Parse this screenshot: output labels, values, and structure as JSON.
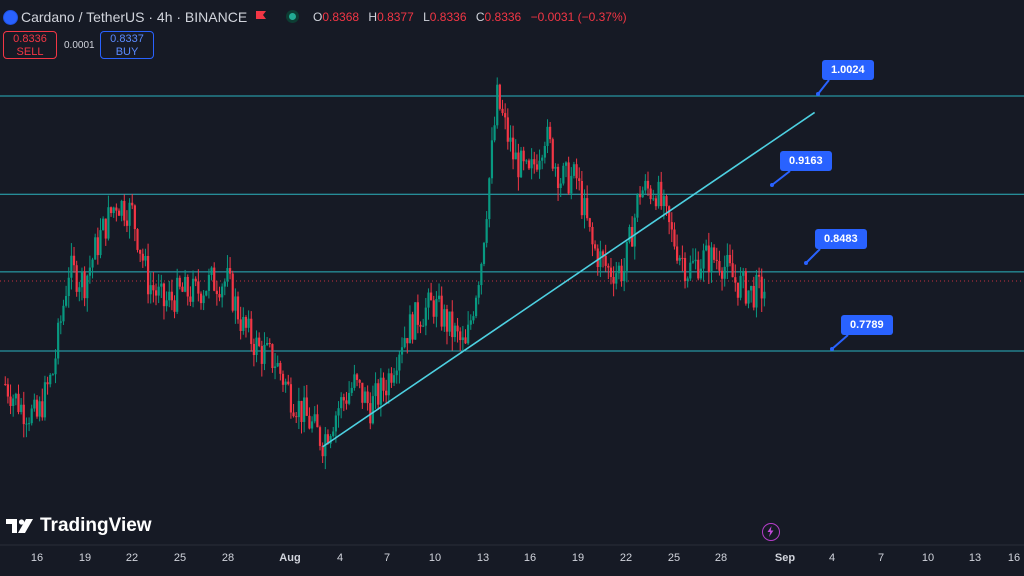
{
  "header": {
    "symbol_title": "Cardano / TetherUS · 4h · BINANCE",
    "ohlc": {
      "open_label": "O",
      "open": "0.8368",
      "high_label": "H",
      "high": "0.8377",
      "low_label": "L",
      "low": "0.8336",
      "close_label": "C",
      "close": "0.8336",
      "change": "−0.0031 (−0.37%)"
    }
  },
  "trade": {
    "sell_price": "0.8336",
    "sell_label": "SELL",
    "spread": "0.0001",
    "buy_price": "0.8337",
    "buy_label": "BUY"
  },
  "brand": "TradingView",
  "price_labels": {
    "l1": "1.0024",
    "l2": "0.9163",
    "l3": "0.8483",
    "l4": "0.7789"
  },
  "x_axis": [
    "16",
    "19",
    "22",
    "25",
    "28",
    "Aug",
    "4",
    "7",
    "10",
    "13",
    "16",
    "19",
    "22",
    "25",
    "28",
    "Sep",
    "4",
    "7",
    "10",
    "13",
    "16"
  ],
  "chart_data": {
    "type": "candlestick",
    "symbol": "Cardano / TetherUS",
    "interval": "4h",
    "exchange": "BINANCE",
    "last_price": 0.8336,
    "horizontal_levels": [
      1.0024,
      0.9163,
      0.8483,
      0.7789
    ],
    "trendline": {
      "from": {
        "date": "Aug 3",
        "price": 0.695
      },
      "to": {
        "date": "Sep 3",
        "price": 0.988
      }
    },
    "close_path": [
      {
        "date": "Jul 14",
        "price": 0.75
      },
      {
        "date": "Jul 15",
        "price": 0.73
      },
      {
        "date": "Jul 16",
        "price": 0.72
      },
      {
        "date": "Jul 17",
        "price": 0.76
      },
      {
        "date": "Jul 18",
        "price": 0.85
      },
      {
        "date": "Jul 19",
        "price": 0.84
      },
      {
        "date": "Jul 20",
        "price": 0.88
      },
      {
        "date": "Jul 21",
        "price": 0.91
      },
      {
        "date": "Jul 22",
        "price": 0.9
      },
      {
        "date": "Jul 23",
        "price": 0.84
      },
      {
        "date": "Jul 24",
        "price": 0.82
      },
      {
        "date": "Jul 25",
        "price": 0.83
      },
      {
        "date": "Jul 26",
        "price": 0.83
      },
      {
        "date": "Jul 27",
        "price": 0.84
      },
      {
        "date": "Jul 28",
        "price": 0.84
      },
      {
        "date": "Jul 29",
        "price": 0.8
      },
      {
        "date": "Jul 30",
        "price": 0.78
      },
      {
        "date": "Jul 31",
        "price": 0.77
      },
      {
        "date": "Aug 1",
        "price": 0.74
      },
      {
        "date": "Aug 2",
        "price": 0.72
      },
      {
        "date": "Aug 3",
        "price": 0.7
      },
      {
        "date": "Aug 4",
        "price": 0.73
      },
      {
        "date": "Aug 5",
        "price": 0.75
      },
      {
        "date": "Aug 6",
        "price": 0.73
      },
      {
        "date": "Aug 7",
        "price": 0.75
      },
      {
        "date": "Aug 8",
        "price": 0.79
      },
      {
        "date": "Aug 9",
        "price": 0.81
      },
      {
        "date": "Aug 10",
        "price": 0.82
      },
      {
        "date": "Aug 11",
        "price": 0.8
      },
      {
        "date": "Aug 12",
        "price": 0.78
      },
      {
        "date": "Aug 13",
        "price": 0.86
      },
      {
        "date": "Aug 14",
        "price": 1.0
      },
      {
        "date": "Aug 15",
        "price": 0.95
      },
      {
        "date": "Aug 16",
        "price": 0.93
      },
      {
        "date": "Aug 17",
        "price": 0.97
      },
      {
        "date": "Aug 18",
        "price": 0.93
      },
      {
        "date": "Aug 19",
        "price": 0.93
      },
      {
        "date": "Aug 20",
        "price": 0.87
      },
      {
        "date": "Aug 21",
        "price": 0.85
      },
      {
        "date": "Aug 22",
        "price": 0.85
      },
      {
        "date": "Aug 23",
        "price": 0.92
      },
      {
        "date": "Aug 24",
        "price": 0.92
      },
      {
        "date": "Aug 25",
        "price": 0.88
      },
      {
        "date": "Aug 26",
        "price": 0.85
      },
      {
        "date": "Aug 27",
        "price": 0.86
      },
      {
        "date": "Aug 28",
        "price": 0.86
      },
      {
        "date": "Aug 29",
        "price": 0.84
      },
      {
        "date": "Aug 30",
        "price": 0.83
      },
      {
        "date": "Aug 31",
        "price": 0.8336
      }
    ]
  }
}
